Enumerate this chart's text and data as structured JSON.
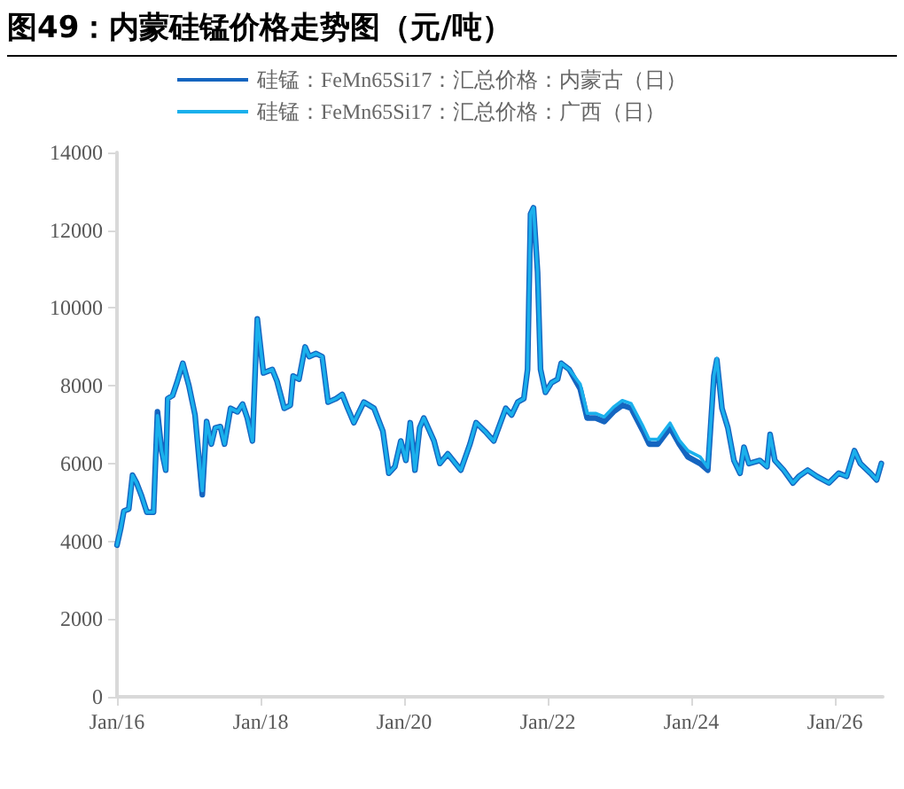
{
  "chart_data": {
    "type": "line",
    "title": "图49：内蒙硅锰价格走势图（元/吨）",
    "x": [
      "2016-01-01",
      "2016-01-20",
      "2016-02-05",
      "2016-03-01",
      "2016-03-20",
      "2016-04-10",
      "2016-05-05",
      "2016-06-01",
      "2016-07-05",
      "2016-07-25",
      "2016-08-15",
      "2016-09-05",
      "2016-09-15",
      "2016-10-10",
      "2016-11-01",
      "2016-12-01",
      "2017-01-01",
      "2017-02-01",
      "2017-03-10",
      "2017-04-01",
      "2017-04-25",
      "2017-05-15",
      "2017-06-10",
      "2017-07-01",
      "2017-08-01",
      "2017-09-05",
      "2017-10-01",
      "2017-10-25",
      "2017-11-20",
      "2017-12-15",
      "2018-01-15",
      "2018-03-01",
      "2018-03-25",
      "2018-05-01",
      "2018-06-01",
      "2018-06-15",
      "2018-07-15",
      "2018-08-15",
      "2018-09-05",
      "2018-10-10",
      "2018-11-10",
      "2018-12-10",
      "2019-01-20",
      "2019-02-20",
      "2019-03-20",
      "2019-04-20",
      "2019-06-10",
      "2019-08-01",
      "2019-09-15",
      "2019-10-15",
      "2019-11-15",
      "2019-12-15",
      "2020-01-10",
      "2020-02-01",
      "2020-02-25",
      "2020-03-20",
      "2020-04-10",
      "2020-06-01",
      "2020-07-01",
      "2020-08-10",
      "2020-10-15",
      "2020-12-01",
      "2021-01-01",
      "2021-02-15",
      "2021-04-01",
      "2021-06-01",
      "2021-07-01",
      "2021-08-01",
      "2021-09-01",
      "2021-09-20",
      "2021-10-05",
      "2021-10-20",
      "2021-11-10",
      "2021-11-25",
      "2021-12-20",
      "2022-01-20",
      "2022-02-20",
      "2022-03-10",
      "2022-04-20",
      "2022-06-15",
      "2022-07-20",
      "2022-09-01",
      "2022-10-15",
      "2022-12-01",
      "2023-01-15",
      "2023-03-01",
      "2023-05-01",
      "2023-06-01",
      "2023-07-15",
      "2023-09-15",
      "2023-11-01",
      "2023-12-15",
      "2024-02-15",
      "2024-03-25",
      "2024-04-25",
      "2024-05-10",
      "2024-06-05",
      "2024-07-05",
      "2024-08-05",
      "2024-09-05",
      "2024-09-25",
      "2024-10-20",
      "2024-12-15",
      "2025-01-20",
      "2025-02-05",
      "2025-03-01",
      "2025-04-15",
      "2025-06-01",
      "2025-07-01",
      "2025-08-15",
      "2025-10-01",
      "2025-12-01",
      "2026-01-20",
      "2026-03-01",
      "2026-04-10",
      "2026-05-10",
      "2026-07-01",
      "2026-08-01",
      "2026-08-25"
    ],
    "series": [
      {
        "name": "硅锰：FeMn65Si17：汇总价格：内蒙古（日）",
        "color": "#1565c0",
        "values": [
          3900,
          4330,
          4780,
          4830,
          5700,
          5500,
          5170,
          4750,
          4750,
          7330,
          6330,
          5830,
          7670,
          7750,
          8080,
          8580,
          8000,
          7250,
          5200,
          7080,
          6500,
          6920,
          6950,
          6500,
          7420,
          7330,
          7530,
          7170,
          6580,
          9720,
          8330,
          8420,
          8120,
          7420,
          7500,
          8250,
          8170,
          9000,
          8750,
          8830,
          8750,
          7580,
          7670,
          7780,
          7420,
          7050,
          7580,
          7420,
          6830,
          5750,
          5920,
          6580,
          6080,
          7050,
          5830,
          6920,
          7170,
          6580,
          6000,
          6250,
          5830,
          6500,
          7050,
          6830,
          6580,
          7420,
          7250,
          7580,
          7670,
          8420,
          12420,
          12580,
          10920,
          8420,
          7830,
          8080,
          8170,
          8580,
          8420,
          7920,
          7170,
          7170,
          7080,
          7330,
          7500,
          7420,
          6830,
          6500,
          6500,
          6920,
          6500,
          6170,
          6000,
          5830,
          8250,
          8670,
          7420,
          6920,
          6080,
          5750,
          6420,
          6000,
          6080,
          5920,
          6750,
          6080,
          5830,
          5500,
          5670,
          5830,
          5670,
          5500,
          5750,
          5670,
          6330,
          6000,
          5750,
          5580,
          6000
        ]
      },
      {
        "name": "硅锰：FeMn65Si17：汇总价格：广西（日）",
        "color": "#1ab0ec",
        "values": [
          3900,
          4330,
          4780,
          4830,
          5700,
          5500,
          5170,
          4750,
          4750,
          7230,
          6330,
          5830,
          7670,
          7750,
          8080,
          8580,
          8000,
          7250,
          5300,
          7080,
          6500,
          6920,
          6950,
          6500,
          7420,
          7330,
          7530,
          7170,
          6580,
          9720,
          8330,
          8420,
          8120,
          7420,
          7500,
          8250,
          8170,
          9000,
          8750,
          8830,
          8750,
          7580,
          7670,
          7780,
          7420,
          7050,
          7580,
          7420,
          6830,
          5750,
          5920,
          6580,
          6080,
          7050,
          5830,
          6920,
          7170,
          6580,
          6000,
          6250,
          5830,
          6500,
          7050,
          6830,
          6580,
          7420,
          7250,
          7580,
          7670,
          8420,
          12420,
          12580,
          10920,
          8420,
          7830,
          8080,
          8170,
          8580,
          8420,
          8040,
          7290,
          7290,
          7200,
          7450,
          7620,
          7540,
          6950,
          6620,
          6620,
          7040,
          6600,
          6330,
          6170,
          5900,
          8250,
          8700,
          7420,
          6920,
          6080,
          5750,
          6420,
          6000,
          6080,
          5920,
          6750,
          6080,
          5830,
          5500,
          5670,
          5830,
          5670,
          5500,
          5750,
          5670,
          6330,
          6000,
          5750,
          5580,
          6000
        ]
      }
    ],
    "xlim": [
      "2016-01-01",
      "2026-09-01"
    ],
    "xticks": [
      {
        "value": "2016-01-01",
        "label": "Jan/16"
      },
      {
        "value": "2018-01-01",
        "label": "Jan/18"
      },
      {
        "value": "2020-01-01",
        "label": "Jan/20"
      },
      {
        "value": "2022-01-01",
        "label": "Jan/22"
      },
      {
        "value": "2024-01-01",
        "label": "Jan/24"
      },
      {
        "value": "2026-01-01",
        "label": "Jan/26"
      }
    ],
    "ylim": [
      0,
      14000
    ],
    "yticks": [
      0,
      2000,
      4000,
      6000,
      8000,
      10000,
      12000,
      14000
    ],
    "grid": false,
    "legend": "top",
    "marker": "none",
    "line_style": "solid"
  }
}
